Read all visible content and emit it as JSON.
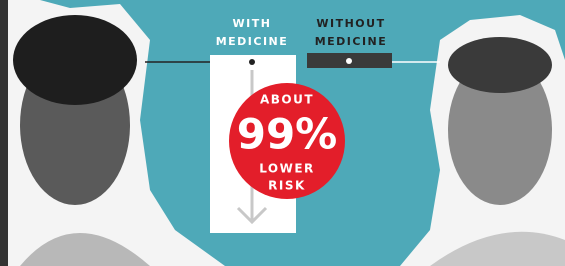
{
  "labels": {
    "with_medicine": [
      "WITH",
      "MEDICINE"
    ],
    "without_medicine": [
      "WITHOUT",
      "MEDICINE"
    ]
  },
  "badge": {
    "top": "ABOUT",
    "figure": "99%",
    "bottom": [
      "LOWER",
      "RISK"
    ]
  }
}
